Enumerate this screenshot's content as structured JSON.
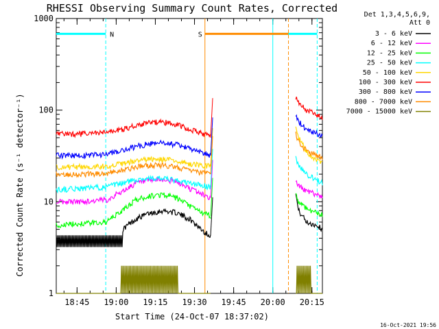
{
  "chart_data": {
    "type": "line",
    "title": "RHESSI Observing Summary Count Rates, Corrected",
    "ylabel": "Corrected Count Rate (s⁻¹ detector⁻¹)",
    "xlabel": "Start Time (24-Oct-07 18:37:02)",
    "yscale": "log",
    "ylim": [
      1,
      1000
    ],
    "xlim": [
      "18:37:02",
      "20:19:00"
    ],
    "x_ticks": [
      "18:45",
      "19:00",
      "19:15",
      "19:30",
      "19:45",
      "20:00",
      "20:15"
    ],
    "y_ticks": [
      "1",
      "10",
      "100",
      "1000"
    ],
    "legend": {
      "header": [
        "Det 1,3,4,5,6,9,",
        "Att 0"
      ],
      "placement": "right",
      "entries": [
        {
          "label": "3 - 6 keV",
          "color": "#000000"
        },
        {
          "label": "6 - 12 keV",
          "color": "#ff00ff"
        },
        {
          "label": "12 - 25 keV",
          "color": "#00ff00"
        },
        {
          "label": "25 - 50 keV",
          "color": "#00ffff"
        },
        {
          "label": "50 - 100 keV",
          "color": "#ffd700"
        },
        {
          "label": "100 - 300 keV",
          "color": "#ff0000"
        },
        {
          "label": "300 - 800 keV",
          "color": "#0000ff"
        },
        {
          "label": "800 - 7000 keV",
          "color": "#ff8c00"
        },
        {
          "label": "7000 - 15000 keV",
          "color": "#808000"
        }
      ]
    },
    "annotations": [
      {
        "text": "N",
        "meaning": "night",
        "color": "#00ffff",
        "start": "18:37",
        "end": "18:56"
      },
      {
        "text": "",
        "meaning": "night",
        "color": "#00ffff",
        "start": "20:00",
        "end": "20:17"
      },
      {
        "text": "S",
        "meaning": "SAA",
        "color": "#ff8c00",
        "start": "19:34",
        "end": "20:06"
      }
    ],
    "gap": {
      "start": "19:34",
      "end": "20:06"
    },
    "series": [
      {
        "name": "3 - 6 keV",
        "color": "#000000",
        "flicker": [
          3.2,
          4.3
        ],
        "pre": [
          [
            0,
            3.8
          ],
          [
            10,
            3.8
          ],
          [
            19,
            3.8
          ],
          [
            25,
            5.0
          ],
          [
            30,
            6.5
          ],
          [
            35,
            7.5
          ],
          [
            40,
            8.0
          ],
          [
            45,
            7.6
          ],
          [
            50,
            6.5
          ],
          [
            53,
            5.5
          ],
          [
            56,
            4.6
          ],
          [
            58,
            4.3
          ]
        ],
        "post": [
          [
            90,
            12
          ],
          [
            91,
            8
          ],
          [
            94,
            6
          ],
          [
            98,
            5.5
          ],
          [
            100,
            5.0
          ]
        ]
      },
      {
        "name": "6 - 12 keV",
        "color": "#ff00ff",
        "pre": [
          [
            0,
            10
          ],
          [
            10,
            10
          ],
          [
            19,
            10.5
          ],
          [
            25,
            13
          ],
          [
            30,
            16
          ],
          [
            35,
            17
          ],
          [
            40,
            17.5
          ],
          [
            45,
            16.5
          ],
          [
            50,
            14
          ],
          [
            55,
            12
          ],
          [
            58,
            11
          ]
        ],
        "post": [
          [
            90,
            17
          ],
          [
            91,
            15
          ],
          [
            94,
            13
          ],
          [
            98,
            12
          ],
          [
            100,
            11.5
          ]
        ]
      },
      {
        "name": "12 - 25 keV",
        "color": "#00ff00",
        "pre": [
          [
            0,
            5.5
          ],
          [
            10,
            5.8
          ],
          [
            19,
            6
          ],
          [
            25,
            8
          ],
          [
            30,
            10.5
          ],
          [
            35,
            11.5
          ],
          [
            40,
            12
          ],
          [
            45,
            11
          ],
          [
            50,
            9
          ],
          [
            55,
            7.5
          ],
          [
            58,
            7
          ]
        ],
        "post": [
          [
            90,
            12
          ],
          [
            91,
            10
          ],
          [
            94,
            8.5
          ],
          [
            98,
            7.5
          ],
          [
            100,
            7.2
          ]
        ]
      },
      {
        "name": "25 - 50 keV",
        "color": "#00ffff",
        "pre": [
          [
            0,
            13.5
          ],
          [
            10,
            14
          ],
          [
            19,
            14.5
          ],
          [
            25,
            16
          ],
          [
            30,
            17.5
          ],
          [
            35,
            18
          ],
          [
            40,
            18
          ],
          [
            45,
            17
          ],
          [
            50,
            16
          ],
          [
            55,
            15
          ],
          [
            58,
            14.5
          ]
        ],
        "post": [
          [
            90,
            30
          ],
          [
            91,
            25
          ],
          [
            94,
            20
          ],
          [
            98,
            17
          ],
          [
            100,
            16
          ]
        ]
      },
      {
        "name": "50 - 100 keV",
        "color": "#ffd700",
        "pre": [
          [
            0,
            24
          ],
          [
            10,
            24
          ],
          [
            19,
            24.5
          ],
          [
            25,
            26
          ],
          [
            30,
            28
          ],
          [
            35,
            29
          ],
          [
            40,
            29
          ],
          [
            45,
            28
          ],
          [
            50,
            26
          ],
          [
            55,
            25
          ],
          [
            58,
            24.5
          ]
        ],
        "post": [
          [
            90,
            65
          ],
          [
            91,
            50
          ],
          [
            94,
            35
          ],
          [
            98,
            28
          ],
          [
            100,
            26
          ]
        ]
      },
      {
        "name": "100 - 300 keV",
        "color": "#ff0000",
        "pre": [
          [
            0,
            55
          ],
          [
            10,
            55
          ],
          [
            19,
            57
          ],
          [
            25,
            62
          ],
          [
            30,
            68
          ],
          [
            35,
            73
          ],
          [
            40,
            74
          ],
          [
            45,
            70
          ],
          [
            50,
            62
          ],
          [
            55,
            55
          ],
          [
            58,
            52
          ]
        ],
        "post": [
          [
            90,
            140
          ],
          [
            91,
            120
          ],
          [
            94,
            100
          ],
          [
            98,
            88
          ],
          [
            100,
            80
          ]
        ]
      },
      {
        "name": "300 - 800 keV",
        "color": "#0000ff",
        "pre": [
          [
            0,
            32
          ],
          [
            10,
            32
          ],
          [
            19,
            33
          ],
          [
            25,
            36
          ],
          [
            30,
            40
          ],
          [
            35,
            43
          ],
          [
            40,
            44
          ],
          [
            45,
            42
          ],
          [
            50,
            38
          ],
          [
            55,
            34
          ],
          [
            58,
            32
          ]
        ],
        "post": [
          [
            90,
            90
          ],
          [
            91,
            75
          ],
          [
            94,
            62
          ],
          [
            98,
            56
          ],
          [
            100,
            52
          ]
        ]
      },
      {
        "name": "800 - 7000 keV",
        "color": "#ff8c00",
        "pre": [
          [
            0,
            20
          ],
          [
            10,
            20
          ],
          [
            19,
            20.5
          ],
          [
            25,
            22
          ],
          [
            30,
            24
          ],
          [
            35,
            25
          ],
          [
            40,
            25
          ],
          [
            45,
            24
          ],
          [
            50,
            22
          ],
          [
            55,
            20.5
          ],
          [
            58,
            20
          ]
        ],
        "post": [
          [
            90,
            55
          ],
          [
            91,
            45
          ],
          [
            94,
            36
          ],
          [
            98,
            32
          ],
          [
            100,
            30
          ]
        ]
      },
      {
        "name": "7000 - 15000 keV",
        "color": "#808000",
        "bursty": true,
        "pre": [
          [
            0,
            1
          ],
          [
            24,
            1
          ],
          [
            25,
            2
          ],
          [
            45,
            2
          ],
          [
            46,
            1
          ],
          [
            58,
            1
          ]
        ],
        "post": [
          [
            90,
            1
          ],
          [
            91,
            2
          ],
          [
            95,
            2
          ],
          [
            96,
            1
          ],
          [
            100,
            1
          ]
        ]
      }
    ]
  },
  "footer": {
    "date_stamp": "16-Oct-2021 19:56"
  }
}
